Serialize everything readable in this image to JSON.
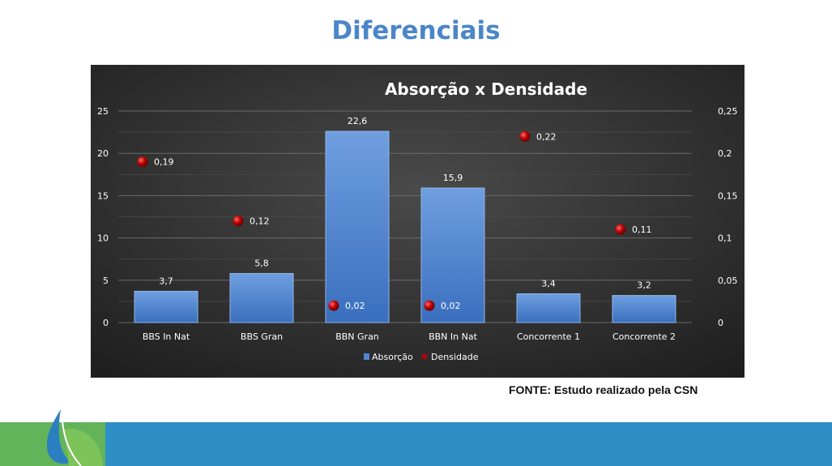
{
  "slide": {
    "title": "Diferenciais",
    "source": "FONTE: Estudo realizado pela CSN"
  },
  "colors": {
    "title": "#4a86c8",
    "bar": "#4f86d0",
    "marker": "#c00000",
    "chart_bg": "#3a3a3a",
    "footer_blue": "#2e8fc6",
    "footer_green": "#63b35b"
  },
  "icons": {
    "footer_logo": "leaf-drop-icon"
  },
  "chart_data": {
    "type": "bar",
    "title": "Absorção x Densidade",
    "categories": [
      "BBS In Nat",
      "BBS Gran",
      "BBN Gran",
      "BBN In Nat",
      "Concorrente 1",
      "Concorrente 2"
    ],
    "series": [
      {
        "name": "Absorção",
        "type": "bar",
        "axis": "left",
        "values": [
          3.7,
          5.8,
          22.6,
          15.9,
          3.4,
          3.2
        ],
        "labels": [
          "3,7",
          "5,8",
          "22,6",
          "15,9",
          "3,4",
          "3,2"
        ]
      },
      {
        "name": "Densidade",
        "type": "scatter",
        "axis": "right",
        "values": [
          0.19,
          0.12,
          0.02,
          0.02,
          0.22,
          0.11
        ],
        "labels": [
          "0,19",
          "0,12",
          "0,02",
          "0,02",
          "0,22",
          "0,11"
        ]
      }
    ],
    "y_left": {
      "ylim": [
        0,
        25
      ],
      "ticks": [
        0,
        5,
        10,
        15,
        20,
        25
      ],
      "tick_labels": [
        "0",
        "5",
        "10",
        "15",
        "20",
        "25"
      ]
    },
    "y_right": {
      "ylim": [
        0,
        0.25
      ],
      "ticks": [
        0,
        0.05,
        0.1,
        0.15,
        0.2,
        0.25
      ],
      "tick_labels": [
        "0",
        "0,05",
        "0,1",
        "0,15",
        "0,2",
        "0,25"
      ]
    },
    "xlabel": "",
    "ylabel": "",
    "grid": true,
    "legend": "bottom"
  }
}
